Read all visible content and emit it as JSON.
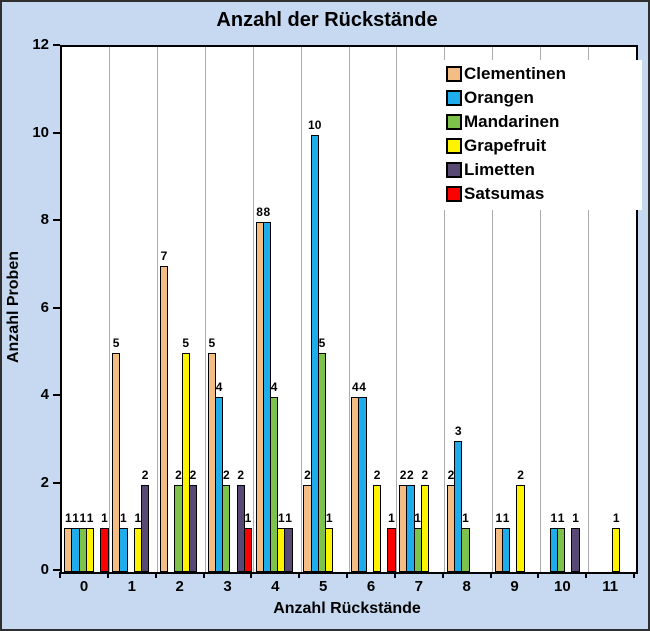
{
  "title": "Anzahl der Rückstände",
  "colors": {
    "background": "#C6D9F1",
    "plot_background": "#FFFFFF",
    "gridline": "#ABABAB",
    "bar_border": "#000000",
    "text": "#000000"
  },
  "chart_data": {
    "type": "bar",
    "title": "Anzahl der Rückstände",
    "xlabel": "Anzahl Rückstände",
    "ylabel": "Anzahl Proben",
    "categories": [
      "0",
      "1",
      "2",
      "3",
      "4",
      "5",
      "6",
      "7",
      "8",
      "9",
      "10",
      "11"
    ],
    "series": [
      {
        "name": "Clementinen",
        "color": "#F5BD86",
        "values": [
          1,
          5,
          7,
          5,
          8,
          2,
          4,
          2,
          2,
          1,
          0,
          0
        ]
      },
      {
        "name": "Orangen",
        "color": "#1FACEC",
        "values": [
          1,
          1,
          0,
          4,
          8,
          10,
          4,
          2,
          3,
          1,
          1,
          0
        ]
      },
      {
        "name": "Mandarinen",
        "color": "#7DC24B",
        "values": [
          1,
          0,
          2,
          2,
          4,
          5,
          0,
          1,
          1,
          0,
          1,
          0
        ]
      },
      {
        "name": "Grapefruit",
        "color": "#FFF400",
        "values": [
          1,
          1,
          5,
          0,
          1,
          1,
          2,
          2,
          0,
          2,
          0,
          1
        ]
      },
      {
        "name": "Limetten",
        "color": "#584874",
        "values": [
          0,
          2,
          2,
          2,
          1,
          0,
          0,
          0,
          0,
          0,
          1,
          0
        ]
      },
      {
        "name": "Satsumas",
        "color": "#FC0000",
        "values": [
          1,
          0,
          0,
          1,
          0,
          0,
          1,
          0,
          0,
          0,
          0,
          0
        ]
      }
    ],
    "ylim": [
      0,
      12
    ],
    "ytick_step": 2,
    "yticks": [
      0,
      2,
      4,
      6,
      8,
      10,
      12
    ],
    "grid": "vertical-category-boundaries",
    "legend_position": "top-right",
    "bar_labels": true
  }
}
